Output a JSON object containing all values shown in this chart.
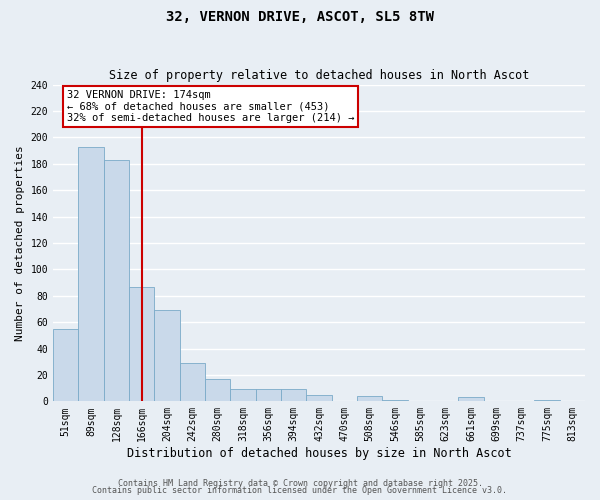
{
  "title": "32, VERNON DRIVE, ASCOT, SL5 8TW",
  "subtitle": "Size of property relative to detached houses in North Ascot",
  "xlabel": "Distribution of detached houses by size in North Ascot",
  "ylabel": "Number of detached properties",
  "bar_labels": [
    "51sqm",
    "89sqm",
    "128sqm",
    "166sqm",
    "204sqm",
    "242sqm",
    "280sqm",
    "318sqm",
    "356sqm",
    "394sqm",
    "432sqm",
    "470sqm",
    "508sqm",
    "546sqm",
    "585sqm",
    "623sqm",
    "661sqm",
    "699sqm",
    "737sqm",
    "775sqm",
    "813sqm"
  ],
  "bar_values": [
    55,
    193,
    183,
    87,
    69,
    29,
    17,
    9,
    9,
    9,
    5,
    0,
    4,
    1,
    0,
    0,
    3,
    0,
    0,
    1,
    0
  ],
  "bar_color": "#c9d9ea",
  "bar_edge_color": "#7aaac8",
  "vline_x_index": 3,
  "vline_color": "#cc0000",
  "annotation_line1": "32 VERNON DRIVE: 174sqm",
  "annotation_line2": "← 68% of detached houses are smaller (453)",
  "annotation_line3": "32% of semi-detached houses are larger (214) →",
  "annotation_box_facecolor": "#ffffff",
  "annotation_box_edgecolor": "#cc0000",
  "ylim": [
    0,
    240
  ],
  "yticks": [
    0,
    20,
    40,
    60,
    80,
    100,
    120,
    140,
    160,
    180,
    200,
    220,
    240
  ],
  "bg_color": "#e8eef4",
  "grid_color": "#ffffff",
  "footer_line1": "Contains HM Land Registry data © Crown copyright and database right 2025.",
  "footer_line2": "Contains public sector information licensed under the Open Government Licence v3.0.",
  "title_fontsize": 10,
  "subtitle_fontsize": 8.5,
  "xlabel_fontsize": 8.5,
  "ylabel_fontsize": 8,
  "tick_fontsize": 7,
  "annot_fontsize": 7.5,
  "footer_fontsize": 6
}
